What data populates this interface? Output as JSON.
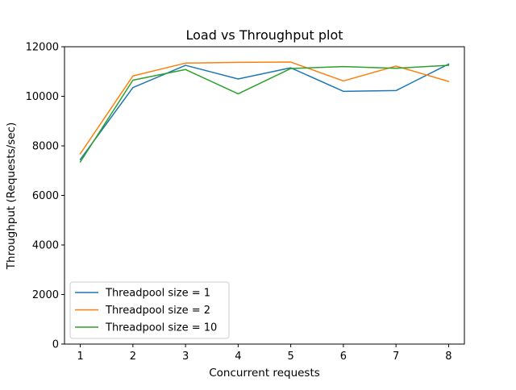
{
  "chart_data": {
    "type": "line",
    "title": "Load vs Throughput plot",
    "xlabel": "Concurrent requests",
    "ylabel": "Throughput (Requests/sec)",
    "x": [
      1,
      2,
      3,
      4,
      5,
      6,
      7,
      8
    ],
    "xlim": [
      0.7,
      8.3
    ],
    "ylim": [
      0,
      12000
    ],
    "xticks": [
      1,
      2,
      3,
      4,
      5,
      6,
      7,
      8
    ],
    "yticks": [
      0,
      2000,
      4000,
      6000,
      8000,
      10000,
      12000
    ],
    "grid": false,
    "legend_position": "lower-left",
    "series": [
      {
        "name": "Threadpool size = 1",
        "color": "#1f77b4",
        "values": [
          7450,
          10350,
          11250,
          10700,
          11150,
          10200,
          10230,
          11300
        ]
      },
      {
        "name": "Threadpool size = 2",
        "color": "#ff7f0e",
        "values": [
          7680,
          10820,
          11340,
          11370,
          11380,
          10620,
          11220,
          10600
        ]
      },
      {
        "name": "Threadpool size = 10",
        "color": "#2ca02c",
        "values": [
          7350,
          10650,
          11080,
          10100,
          11120,
          11200,
          11130,
          11250
        ]
      }
    ]
  }
}
